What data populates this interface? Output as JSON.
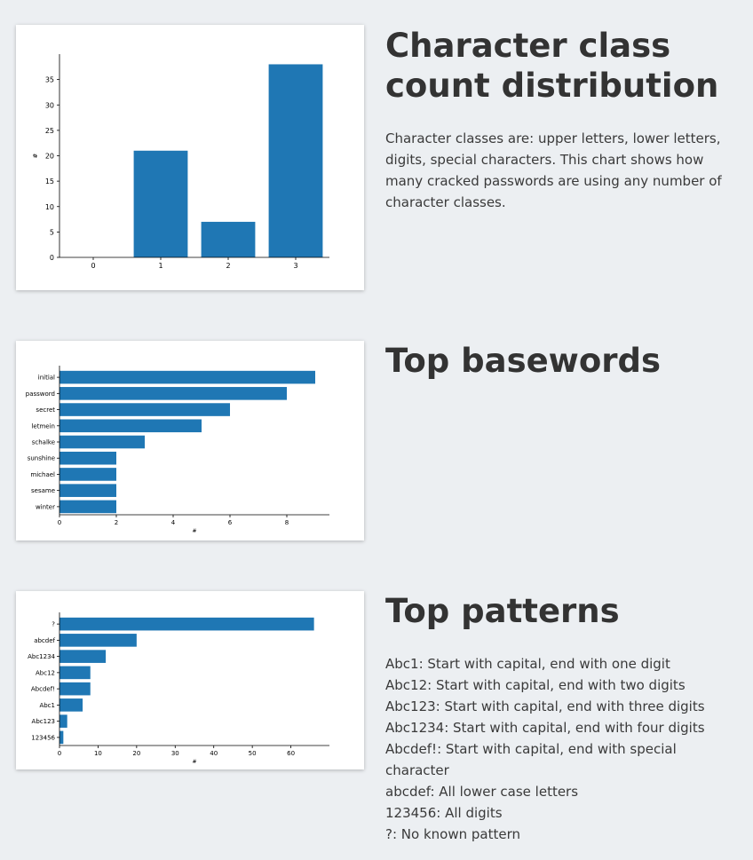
{
  "sections": {
    "class_count": {
      "heading_line1": "Character class",
      "heading_line2": "count distribution",
      "description": "Character classes are: upper letters, lower letters, digits, special characters. This chart shows how many cracked passwords are using any number of character classes."
    },
    "basewords": {
      "heading": "Top basewords"
    },
    "patterns": {
      "heading": "Top patterns",
      "legend": [
        "Abc1: Start with capital, end with one digit",
        "Abc12: Start with capital, end with two digits",
        "Abc123: Start with capital, end with three digits",
        "Abc1234: Start with capital, end with four digits",
        "Abcdef!: Start with capital, end with special character",
        "abcdef: All lower case letters",
        "123456: All digits",
        "?: No known pattern"
      ]
    }
  },
  "colors": {
    "bar": "#1f77b4",
    "background": "#eceff2"
  },
  "chart_data": [
    {
      "type": "bar",
      "categories": [
        "0",
        "1",
        "2",
        "3"
      ],
      "values": [
        0,
        21,
        7,
        38
      ],
      "ylabel": "#",
      "ylim": [
        0,
        40
      ],
      "yticks": [
        0,
        5,
        10,
        15,
        20,
        25,
        30,
        35
      ],
      "grid": false
    },
    {
      "type": "bar",
      "orientation": "horizontal",
      "categories": [
        "initial",
        "password",
        "secret",
        "letmein",
        "schalke",
        "sunshine",
        "michael",
        "sesame",
        "winter"
      ],
      "values": [
        9,
        8,
        6,
        5,
        3,
        2,
        2,
        2,
        2
      ],
      "xlabel": "#",
      "xlim": [
        0,
        9.5
      ],
      "xticks": [
        0,
        2,
        4,
        6,
        8
      ],
      "grid": false
    },
    {
      "type": "bar",
      "orientation": "horizontal",
      "categories": [
        "?",
        "abcdef",
        "Abc1234",
        "Abc12",
        "Abcdef!",
        "Abc1",
        "Abc123",
        "123456"
      ],
      "values": [
        66,
        20,
        12,
        8,
        8,
        6,
        2,
        1
      ],
      "xlabel": "#",
      "xlim": [
        0,
        70
      ],
      "xticks": [
        0,
        10,
        20,
        30,
        40,
        50,
        60
      ],
      "grid": false
    }
  ]
}
